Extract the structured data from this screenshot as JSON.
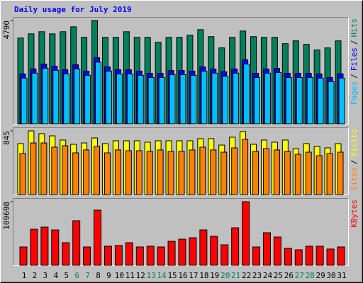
{
  "legend_separator": "/",
  "chart_data": [
    {
      "type": "bar",
      "title": "Daily usage for July 2019",
      "ylim": [
        0,
        4790
      ],
      "yticks": [
        4790
      ],
      "series": [
        {
          "name": "Hits",
          "color": "#00805c",
          "values": [
            3977,
            4173,
            4271,
            4173,
            4271,
            4499,
            4010,
            4790,
            4010,
            4010,
            4271,
            4010,
            4010,
            3782,
            4010,
            4010,
            4108,
            4369,
            4043,
            3521,
            4010,
            4304,
            4043,
            4010,
            4010,
            3717,
            3847,
            3684,
            3423,
            3520,
            3847
          ]
        },
        {
          "name": "Files",
          "color": "#0000ff",
          "values": [
            2315,
            2543,
            2771,
            2673,
            2510,
            2738,
            2445,
            3064,
            2641,
            2510,
            2510,
            2445,
            2347,
            2347,
            2478,
            2478,
            2445,
            2641,
            2543,
            2412,
            2543,
            2967,
            2347,
            2543,
            2575,
            2347,
            2347,
            2347,
            2315,
            2152,
            2315
          ]
        },
        {
          "name": "Pages",
          "color": "#00c0ff",
          "values": [
            2120,
            2350,
            2580,
            2480,
            2310,
            2540,
            2250,
            2860,
            2440,
            2310,
            2310,
            2250,
            2150,
            2150,
            2280,
            2280,
            2250,
            2440,
            2350,
            2210,
            2350,
            2770,
            2150,
            2350,
            2380,
            2150,
            2150,
            2150,
            2120,
            1960,
            2120
          ]
        }
      ]
    },
    {
      "type": "bar",
      "ylim": [
        0,
        845
      ],
      "yticks": [
        845
      ],
      "series": [
        {
          "name": "Visits",
          "color": "#ffff00",
          "values": [
            676,
            845,
            808,
            779,
            723,
            667,
            685,
            751,
            676,
            714,
            714,
            714,
            695,
            714,
            714,
            714,
            714,
            742,
            742,
            657,
            761,
            836,
            667,
            723,
            695,
            723,
            610,
            676,
            639,
            620,
            676
          ]
        },
        {
          "name": "Sites",
          "color": "#ff8000",
          "values": [
            545,
            685,
            685,
            629,
            648,
            554,
            592,
            639,
            554,
            592,
            582,
            582,
            573,
            592,
            573,
            573,
            592,
            629,
            592,
            563,
            620,
            732,
            573,
            610,
            592,
            573,
            535,
            563,
            516,
            545,
            563
          ]
        }
      ]
    },
    {
      "type": "bar",
      "ylim": [
        0,
        109698
      ],
      "yticks": [
        109698
      ],
      "categories": [
        "1",
        "2",
        "3",
        "4",
        "5",
        "6",
        "7",
        "8",
        "9",
        "10",
        "11",
        "12",
        "13",
        "14",
        "15",
        "16",
        "17",
        "18",
        "19",
        "20",
        "21",
        "22",
        "23",
        "24",
        "25",
        "26",
        "27",
        "28",
        "29",
        "30",
        "31"
      ],
      "category_colors": [
        "#000000",
        "#000000",
        "#000000",
        "#000000",
        "#000000",
        "#00805c",
        "#00805c",
        "#000000",
        "#000000",
        "#000000",
        "#000000",
        "#000000",
        "#00805c",
        "#00805c",
        "#000000",
        "#000000",
        "#000000",
        "#000000",
        "#000000",
        "#00805c",
        "#00805c",
        "#000000",
        "#000000",
        "#000000",
        "#000000",
        "#000000",
        "#00805c",
        "#00805c",
        "#000000",
        "#000000",
        "#000000"
      ],
      "series": [
        {
          "name": "KBytes",
          "color": "#ff0000",
          "values": [
            31694,
            62169,
            65826,
            60950,
            39008,
            76797,
            31694,
            95082,
            32913,
            34132,
            39008,
            31694,
            32913,
            31694,
            41446,
            45103,
            47541,
            60950,
            49979,
            35351,
            64607,
            109698,
            31694,
            56074,
            48760,
            29256,
            26818,
            32913,
            32913,
            28037,
            31694
          ]
        }
      ]
    }
  ]
}
